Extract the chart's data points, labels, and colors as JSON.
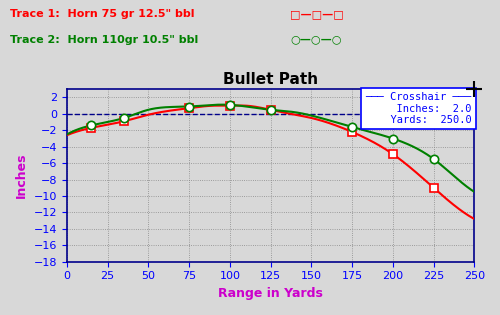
{
  "title": "Bullet Path",
  "xlabel": "Range in Yards",
  "ylabel": "Inches",
  "bg_color": "#d8d8d8",
  "plot_bg_color": "#d8d8d8",
  "xlim": [
    0,
    250
  ],
  "ylim": [
    -18,
    3
  ],
  "yticks": [
    2,
    0,
    -2,
    -4,
    -6,
    -8,
    -10,
    -12,
    -14,
    -16,
    -18
  ],
  "xticks": [
    0,
    25,
    50,
    75,
    100,
    125,
    150,
    175,
    200,
    225,
    250
  ],
  "trace1_label": "Trace 1:  Horn 75 gr 12.5\" bbl",
  "trace2_label": "Trace 2:  Horn 110gr 10.5\" bbl",
  "trace1_color": "#ff0000",
  "trace2_color": "#008000",
  "crosshair_inches": "2.0",
  "crosshair_yards": "250.0",
  "trace1_x": [
    0,
    15,
    35,
    50,
    75,
    90,
    100,
    110,
    125,
    140,
    150,
    175,
    200,
    225,
    240,
    250
  ],
  "trace1_y": [
    -2.6,
    -1.7,
    -0.9,
    -0.1,
    0.7,
    1.0,
    1.0,
    1.0,
    0.5,
    -0.1,
    -0.5,
    -2.2,
    -4.9,
    -9.0,
    -11.5,
    -12.8
  ],
  "trace2_x": [
    0,
    15,
    35,
    50,
    75,
    90,
    100,
    110,
    125,
    140,
    150,
    175,
    200,
    225,
    240,
    250
  ],
  "trace2_y": [
    -2.5,
    -1.4,
    -0.5,
    0.5,
    0.9,
    1.1,
    1.1,
    0.9,
    0.5,
    0.2,
    -0.2,
    -1.6,
    -3.0,
    -5.5,
    -8.0,
    -9.5
  ],
  "trace1_marker_x": [
    15,
    35,
    75,
    100,
    125,
    175,
    200,
    225
  ],
  "trace1_marker_y": [
    -1.7,
    -0.9,
    0.7,
    1.0,
    0.5,
    -2.2,
    -4.9,
    -9.0
  ],
  "trace2_marker_x": [
    15,
    35,
    75,
    100,
    125,
    175,
    200,
    225
  ],
  "trace2_marker_y": [
    -1.4,
    -0.5,
    0.9,
    1.1,
    0.5,
    -1.6,
    -3.0,
    -5.5
  ]
}
